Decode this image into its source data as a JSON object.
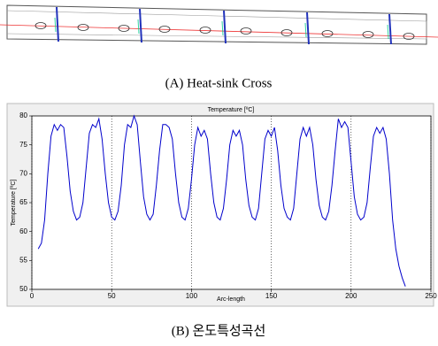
{
  "captions": [
    "(A) Heat-sink Cross",
    "(B) 온도특성곡선"
  ],
  "chart_data": {
    "type": "line",
    "title": "Temperature [ºC]",
    "x_label": "Arc-length",
    "y_label": "Temperature [ºC]",
    "x": [
      4,
      6,
      8,
      10,
      12,
      14,
      16,
      18,
      20,
      22,
      24,
      26,
      28,
      30,
      32,
      34,
      36,
      38,
      40,
      42,
      44,
      46,
      48,
      50,
      52,
      54,
      56,
      58,
      60,
      62,
      64,
      66,
      68,
      70,
      72,
      74,
      76,
      78,
      80,
      82,
      84,
      86,
      88,
      90,
      92,
      94,
      96,
      98,
      100,
      102,
      104,
      106,
      108,
      110,
      112,
      114,
      116,
      118,
      120,
      122,
      124,
      126,
      128,
      130,
      132,
      134,
      136,
      138,
      140,
      142,
      144,
      146,
      148,
      150,
      152,
      154,
      156,
      158,
      160,
      162,
      164,
      166,
      168,
      170,
      172,
      174,
      176,
      178,
      180,
      182,
      184,
      186,
      188,
      190,
      192,
      194,
      196,
      198,
      200,
      202,
      204,
      206,
      208,
      210,
      212,
      214,
      216,
      218,
      220,
      222,
      224,
      226,
      228,
      230,
      232,
      234
    ],
    "values": [
      57,
      58,
      62,
      70,
      76.5,
      78.5,
      77.5,
      78.5,
      78,
      73,
      67,
      63.5,
      62,
      62.5,
      65,
      71,
      77,
      78.5,
      78,
      79.5,
      76,
      70,
      65,
      62.5,
      62,
      63.5,
      68,
      75,
      78.5,
      78,
      80,
      78.5,
      72,
      66,
      63,
      62,
      63,
      68,
      74,
      78.5,
      78.5,
      78,
      76,
      70,
      65,
      62.5,
      62,
      64,
      69,
      75,
      78,
      76.5,
      77.5,
      76,
      70,
      65,
      62.5,
      62,
      64,
      69,
      75,
      77.5,
      76.5,
      77.5,
      75,
      69,
      64.5,
      62.5,
      62,
      64,
      70,
      76,
      77.5,
      76.5,
      78,
      74,
      68,
      64,
      62.5,
      62,
      64,
      70,
      76,
      78,
      76.5,
      78,
      75,
      69,
      64.5,
      62.5,
      62,
      63.5,
      68,
      74,
      79.5,
      78,
      79,
      78,
      72,
      66,
      63,
      62,
      62.5,
      65,
      71,
      76.5,
      78,
      77,
      78,
      76,
      70,
      62,
      57,
      54,
      52,
      50.5
    ],
    "color": "#0000cc",
    "xlim": [
      0,
      250
    ],
    "xticks": [
      0,
      50,
      100,
      150,
      200,
      250
    ],
    "ylim": [
      50,
      80
    ],
    "yticks": [
      50,
      55,
      60,
      65,
      70,
      75,
      80
    ],
    "x_grid": true
  }
}
